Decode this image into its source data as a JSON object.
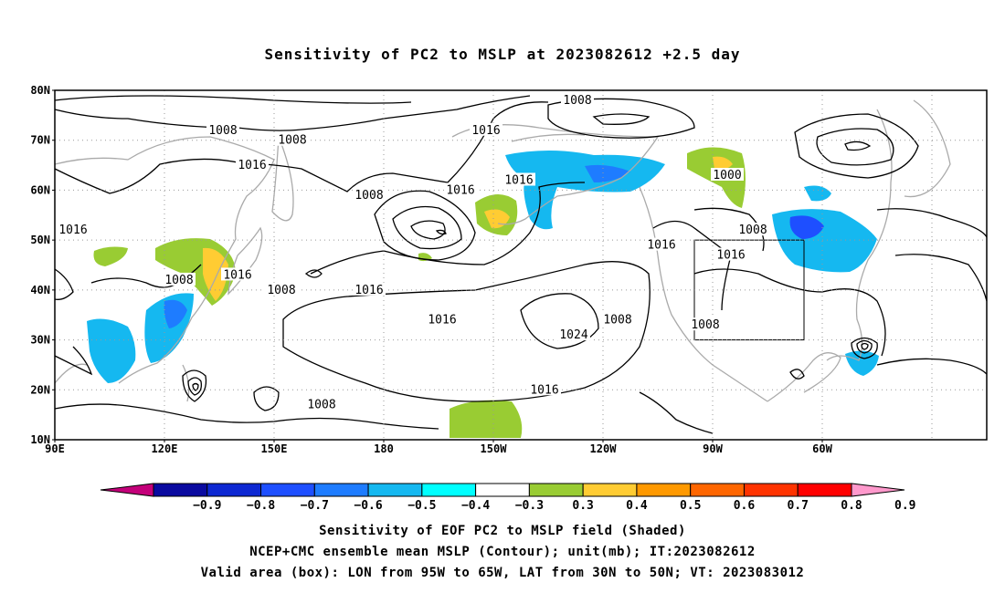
{
  "title": "Sensitivity of PC2 to MSLP at 2023082612 +2.5 day",
  "axes": {
    "lat_labels": [
      "80N",
      "70N",
      "60N",
      "50N",
      "40N",
      "30N",
      "20N",
      "10N"
    ],
    "lon_labels": [
      "90E",
      "120E",
      "150E",
      "180",
      "150W",
      "120W",
      "90W",
      "60W"
    ]
  },
  "contour_labels": [
    {
      "text": "1008",
      "lon": 136,
      "lat": 72
    },
    {
      "text": "1008",
      "lon": 155,
      "lat": 70
    },
    {
      "text": "1016",
      "lon": 144,
      "lat": 65
    },
    {
      "text": "1016",
      "lon": 208,
      "lat": 72
    },
    {
      "text": "1008",
      "lon": 233,
      "lat": 78
    },
    {
      "text": "1016",
      "lon": 201,
      "lat": 60
    },
    {
      "text": "1016",
      "lon": 217,
      "lat": 62
    },
    {
      "text": "1008",
      "lon": 176,
      "lat": 59
    },
    {
      "text": "1000",
      "lon": 274,
      "lat": 63
    },
    {
      "text": "1008",
      "lon": 281,
      "lat": 52
    },
    {
      "text": "1016",
      "lon": 95,
      "lat": 52
    },
    {
      "text": "1008",
      "lon": 124,
      "lat": 42
    },
    {
      "text": "1016",
      "lon": 140,
      "lat": 43
    },
    {
      "text": "1008",
      "lon": 152,
      "lat": 40
    },
    {
      "text": "1016",
      "lon": 176,
      "lat": 40
    },
    {
      "text": "1016",
      "lon": 196,
      "lat": 34
    },
    {
      "text": "1024",
      "lon": 232,
      "lat": 31
    },
    {
      "text": "1008",
      "lon": 244,
      "lat": 34
    },
    {
      "text": "1016",
      "lon": 256,
      "lat": 49
    },
    {
      "text": "1016",
      "lon": 275,
      "lat": 47
    },
    {
      "text": "1008",
      "lon": 268,
      "lat": 33
    },
    {
      "text": "1016",
      "lon": 224,
      "lat": 20
    },
    {
      "text": "1008",
      "lon": 163,
      "lat": 17
    }
  ],
  "valid_box": {
    "lon_min": 265,
    "lon_max": 295,
    "lat_min": 30,
    "lat_max": 50
  },
  "colorbar": {
    "labels": [
      "−0.9",
      "−0.8",
      "−0.7",
      "−0.6",
      "−0.5",
      "−0.4",
      "−0.3",
      "0.3",
      "0.4",
      "0.5",
      "0.6",
      "0.7",
      "0.8",
      "0.9"
    ],
    "colors": [
      "#c4007a",
      "#0a0aa0",
      "#0d28d2",
      "#1e4fff",
      "#1e7cff",
      "#15b8f0",
      "#00ffff",
      "#ffffff",
      "#99cc33",
      "#ffcc33",
      "#ff9900",
      "#ff6600",
      "#ff3300",
      "#ff0000",
      "#ff99cc"
    ]
  },
  "captions": [
    "Sensitivity of EOF PC2 to MSLP field (Shaded)",
    "NCEP+CMC ensemble mean MSLP (Contour); unit(mb); IT:2023082612",
    "Valid area (box): LON from 95W to 65W, LAT from 30N to 50N; VT: 2023083012"
  ]
}
